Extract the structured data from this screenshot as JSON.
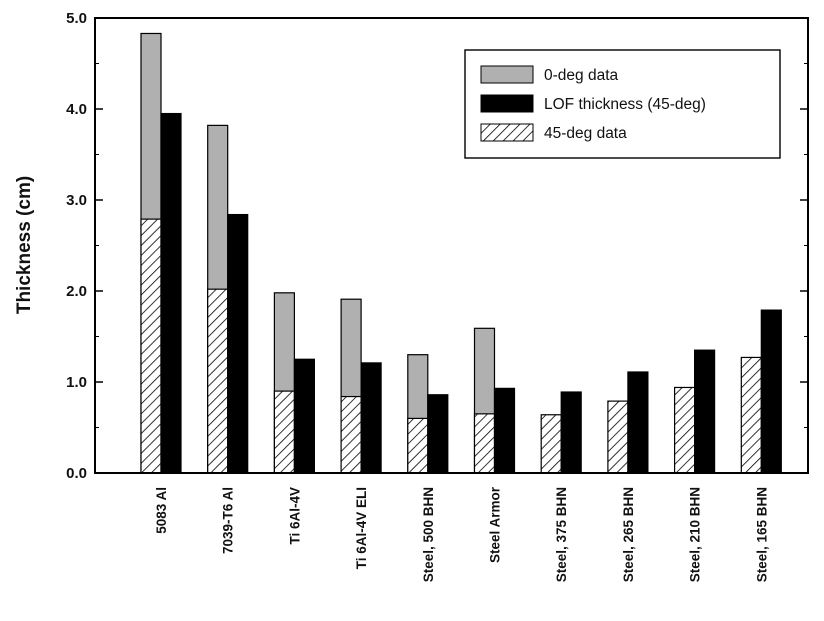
{
  "chart_data": {
    "type": "bar",
    "title": "",
    "xlabel": "",
    "ylabel": "Thickness (cm)",
    "ylim": [
      0,
      5
    ],
    "yticks": [
      "0.0",
      "1.0",
      "2.0",
      "3.0",
      "4.0",
      "5.0"
    ],
    "grid": false,
    "legend_position": "top-right",
    "categories": [
      "5083 Al",
      "7039-T6 Al",
      "Ti 6Al-4V",
      "Ti 6Al-4V ELI",
      "Steel, 500 BHN",
      "Steel Armor",
      "Steel, 375 BHN",
      "Steel, 265 BHN",
      "Steel, 210 BHN",
      "Steel, 165 BHN"
    ],
    "series": [
      {
        "name": "0-deg data",
        "style": "gray",
        "color": "#b0b0b0",
        "values": [
          4.83,
          3.82,
          1.98,
          1.91,
          1.3,
          1.59,
          null,
          null,
          null,
          null
        ]
      },
      {
        "name": "45-deg data",
        "style": "hatched",
        "color": "#ffffff",
        "values": [
          2.79,
          2.02,
          0.9,
          0.84,
          0.6,
          0.65,
          0.64,
          0.79,
          0.94,
          1.27
        ]
      },
      {
        "name": "LOF thickness (45-deg)",
        "style": "black",
        "color": "#000000",
        "values": [
          3.95,
          2.84,
          1.25,
          1.21,
          0.86,
          0.93,
          0.89,
          1.11,
          1.35,
          1.79
        ]
      }
    ],
    "legend_order": [
      "0-deg data",
      "LOF thickness (45-deg)",
      "45-deg data"
    ]
  }
}
